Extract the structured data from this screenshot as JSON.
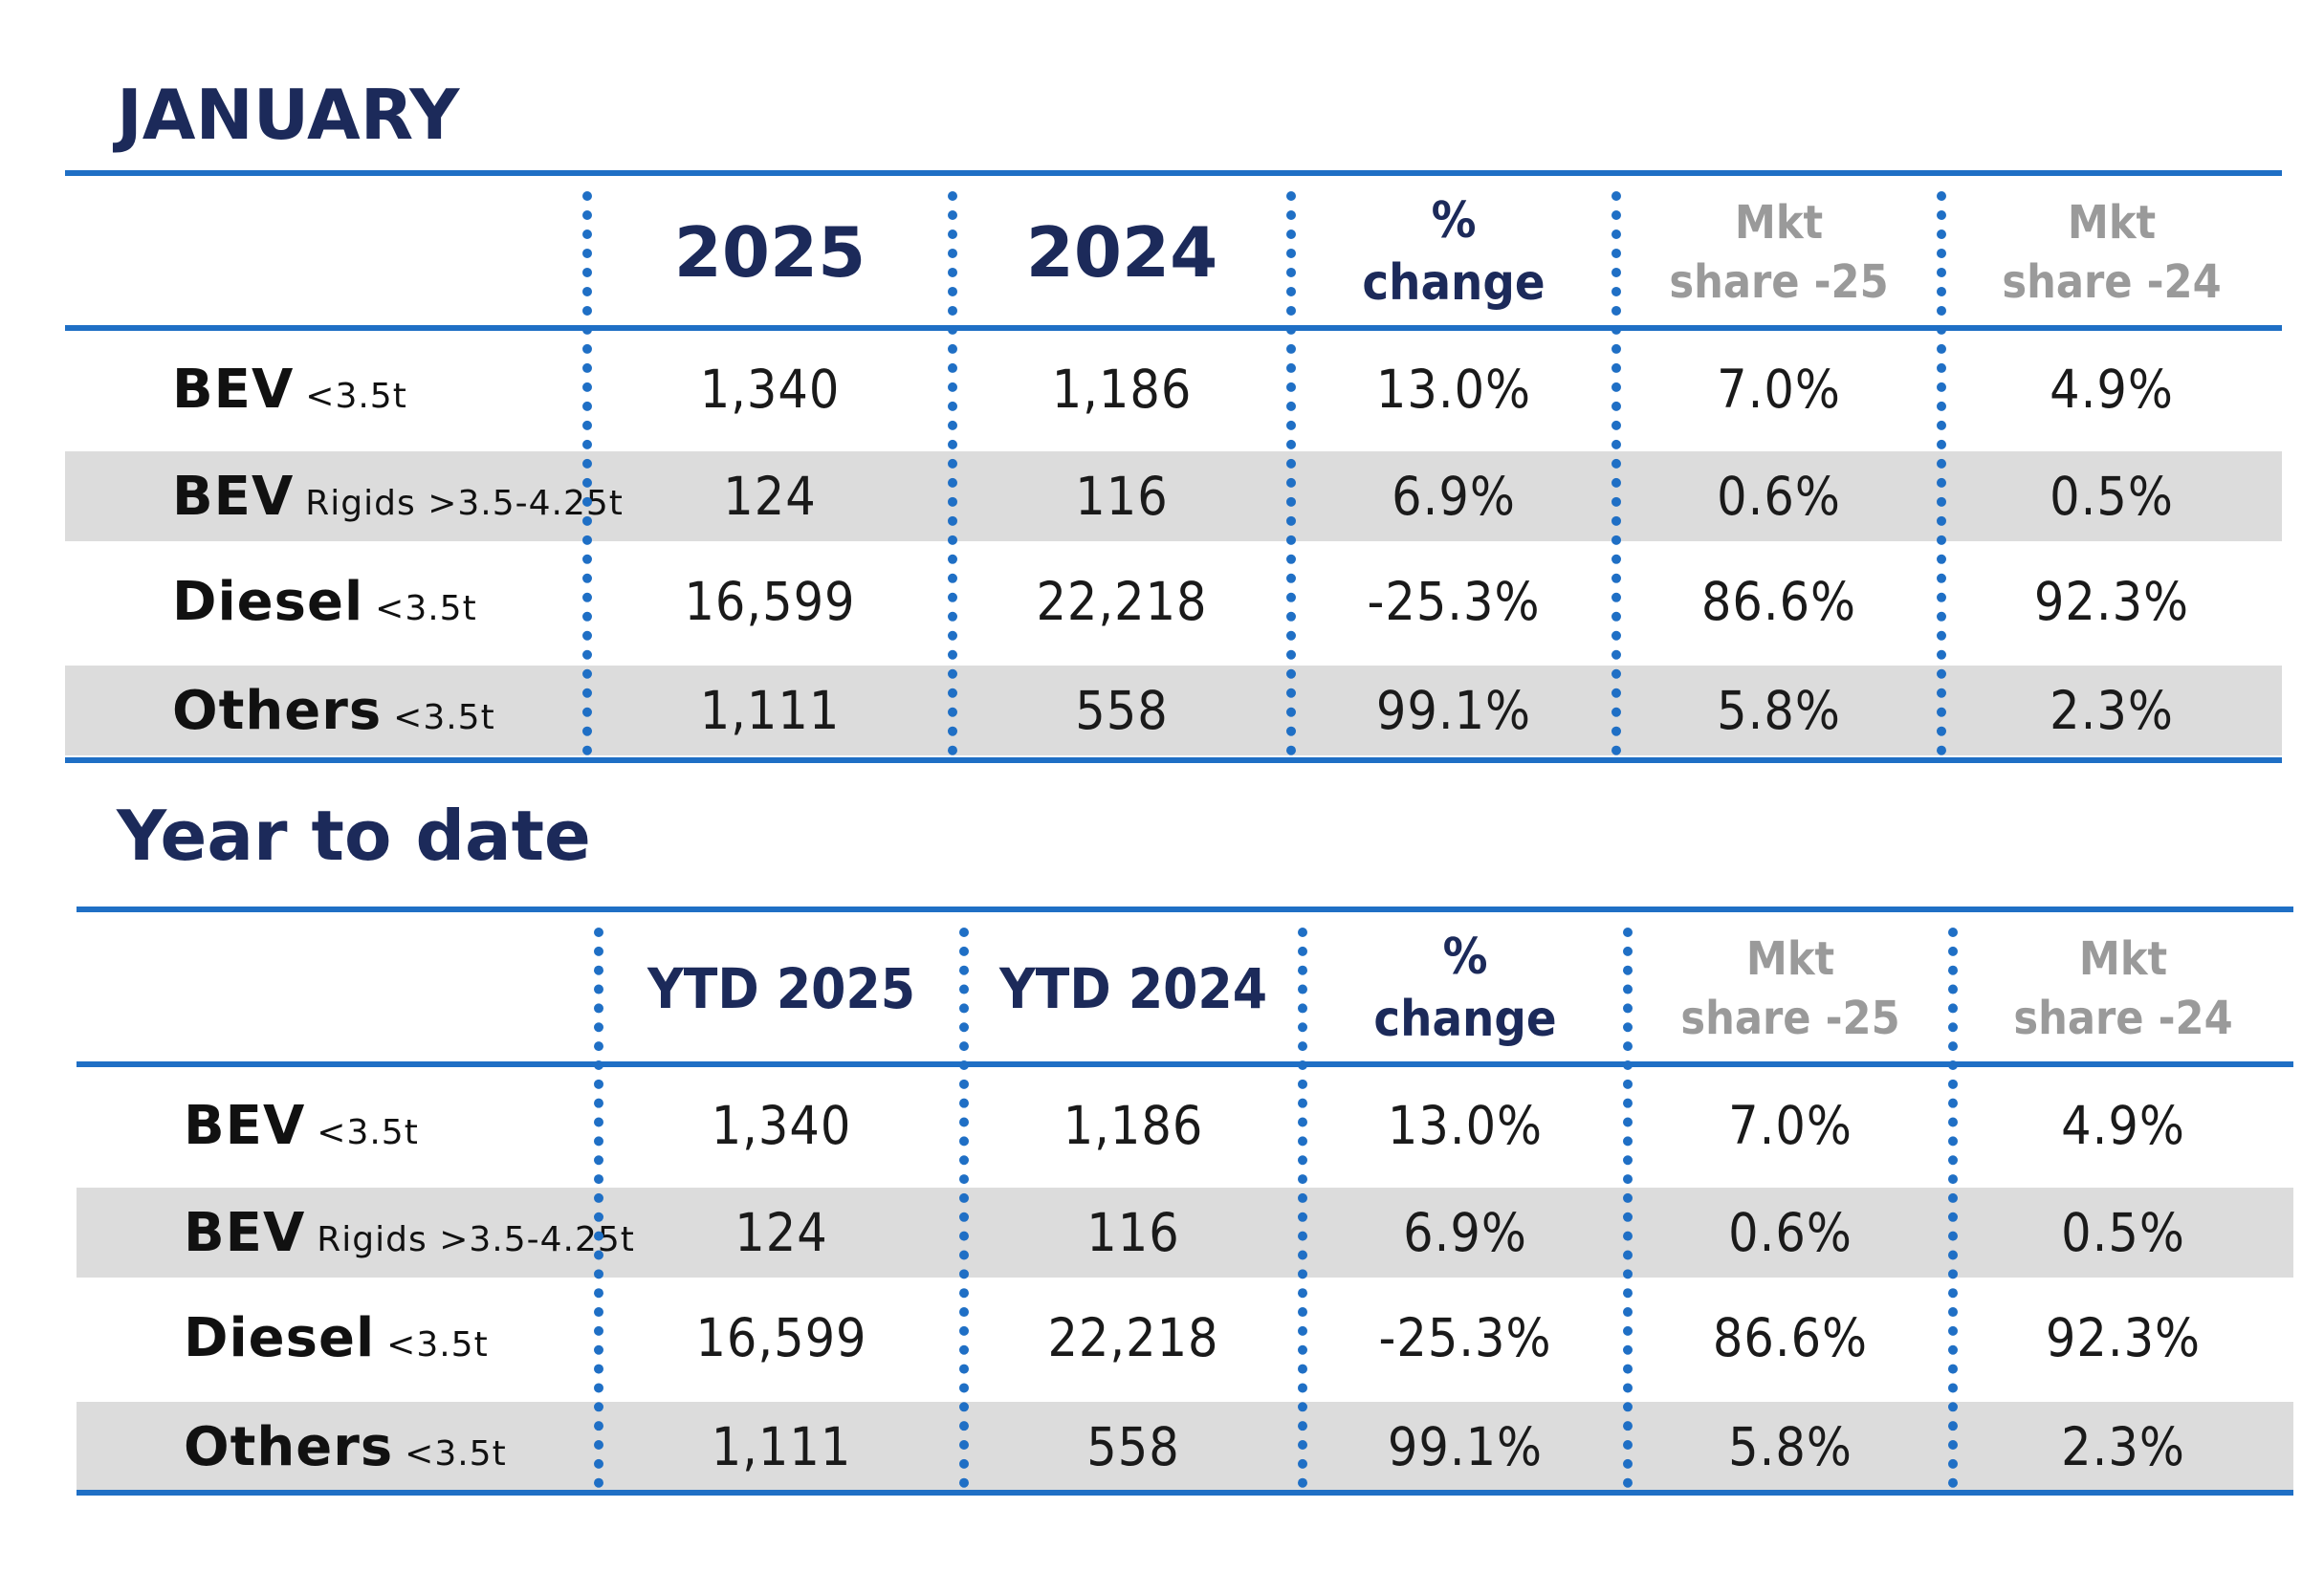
{
  "colors": {
    "accent_blue": "#1f6fc5",
    "title_navy": "#1c2a5a",
    "header_grey": "#9a9a9a",
    "row_shade": "#dcdcdc"
  },
  "january": {
    "title": "JANUARY",
    "headers": {
      "col1": "2025",
      "col2": "2024",
      "pct_line1": "%",
      "pct_line2": "change",
      "mkt25_line1": "Mkt",
      "mkt25_line2": "share -25",
      "mkt24_line1": "Mkt",
      "mkt24_line2": "share -24"
    },
    "rows": [
      {
        "label": "BEV",
        "sub": "<3.5t",
        "v2025": "1,340",
        "v2024": "1,186",
        "pct": "13.0%",
        "mkt25": "7.0%",
        "mkt24": "4.9%"
      },
      {
        "label": "BEV",
        "sub": "Rigids >3.5-4.25t",
        "v2025": "124",
        "v2024": "116",
        "pct": "6.9%",
        "mkt25": "0.6%",
        "mkt24": "0.5%"
      },
      {
        "label": "Diesel",
        "sub": "<3.5t",
        "v2025": "16,599",
        "v2024": "22,218",
        "pct": "-25.3%",
        "mkt25": "86.6%",
        "mkt24": "92.3%"
      },
      {
        "label": "Others",
        "sub": "<3.5t",
        "v2025": "1,111",
        "v2024": "558",
        "pct": "99.1%",
        "mkt25": "5.8%",
        "mkt24": "2.3%"
      }
    ]
  },
  "ytd": {
    "title": "Year to date",
    "headers": {
      "col1": "YTD 2025",
      "col2": "YTD 2024",
      "pct_line1": "%",
      "pct_line2": "change",
      "mkt25_line1": "Mkt",
      "mkt25_line2": "share -25",
      "mkt24_line1": "Mkt",
      "mkt24_line2": "share -24"
    },
    "rows": [
      {
        "label": "BEV",
        "sub": "<3.5t",
        "v2025": "1,340",
        "v2024": "1,186",
        "pct": "13.0%",
        "mkt25": "7.0%",
        "mkt24": "4.9%"
      },
      {
        "label": "BEV",
        "sub": "Rigids >3.5-4.25t",
        "v2025": "124",
        "v2024": "116",
        "pct": "6.9%",
        "mkt25": "0.6%",
        "mkt24": "0.5%"
      },
      {
        "label": "Diesel",
        "sub": "<3.5t",
        "v2025": "16,599",
        "v2024": "22,218",
        "pct": "-25.3%",
        "mkt25": "86.6%",
        "mkt24": "92.3%"
      },
      {
        "label": "Others",
        "sub": "<3.5t",
        "v2025": "1,111",
        "v2024": "558",
        "pct": "99.1%",
        "mkt25": "5.8%",
        "mkt24": "2.3%"
      }
    ]
  }
}
